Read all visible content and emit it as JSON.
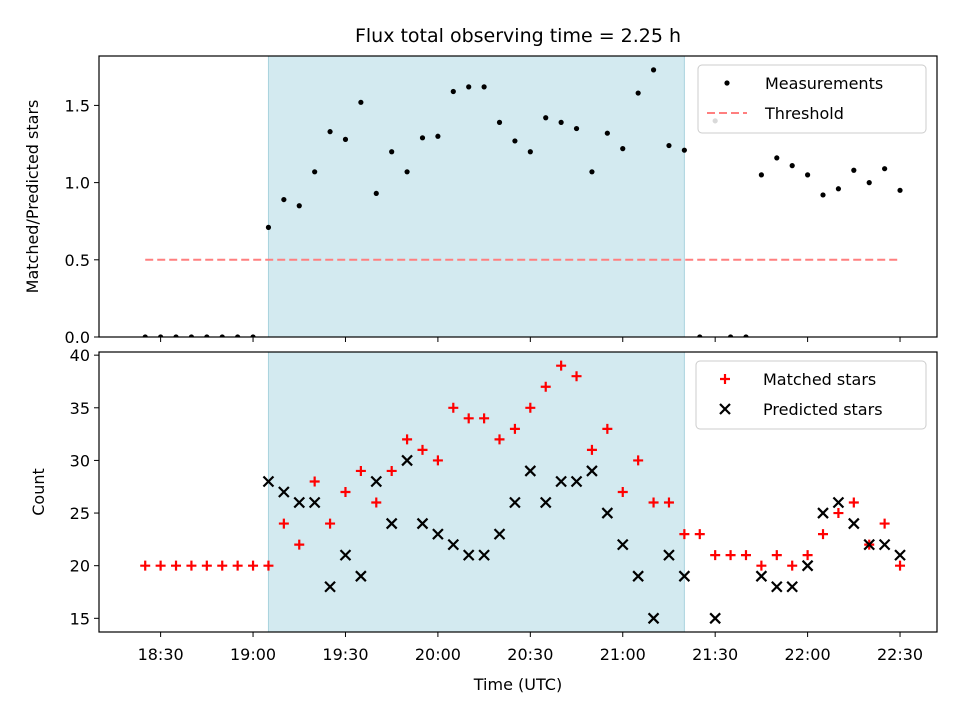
{
  "chart_data": {
    "type": "scatter",
    "title": "Flux total observing time = 2.25 h",
    "xlabel": "Time (UTC)",
    "x_ticks": [
      "18:30",
      "19:00",
      "19:30",
      "20:00",
      "20:30",
      "21:00",
      "21:30",
      "22:00",
      "22:30"
    ],
    "xlim": [
      "18:10",
      "22:42"
    ],
    "shaded_interval": [
      "19:05",
      "21:20"
    ],
    "colors": {
      "shade": "#d3eaf0",
      "measurements": "#000000",
      "threshold": "#ff7f7f",
      "matched": "#ff0000",
      "predicted": "#000000"
    },
    "panels": [
      {
        "ylabel": "Matched/Predicted stars",
        "ylim": [
          0,
          1.82
        ],
        "y_ticks": [
          "0.0",
          "0.5",
          "1.0",
          "1.5"
        ],
        "legend": {
          "position": "top-right",
          "entries": [
            "Measurements",
            "Threshold"
          ]
        },
        "series": [
          {
            "name": "Measurements",
            "marker": "dot",
            "points": [
              [
                "18:25",
                0.0
              ],
              [
                "18:30",
                0.0
              ],
              [
                "18:35",
                0.0
              ],
              [
                "18:40",
                0.0
              ],
              [
                "18:45",
                0.0
              ],
              [
                "18:50",
                0.0
              ],
              [
                "18:55",
                0.0
              ],
              [
                "19:00",
                0.0
              ],
              [
                "19:05",
                0.71
              ],
              [
                "19:10",
                0.89
              ],
              [
                "19:15",
                0.85
              ],
              [
                "19:20",
                1.07
              ],
              [
                "19:25",
                1.33
              ],
              [
                "19:30",
                1.28
              ],
              [
                "19:35",
                1.52
              ],
              [
                "19:40",
                0.93
              ],
              [
                "19:45",
                1.2
              ],
              [
                "19:50",
                1.07
              ],
              [
                "19:55",
                1.29
              ],
              [
                "20:00",
                1.3
              ],
              [
                "20:05",
                1.59
              ],
              [
                "20:10",
                1.62
              ],
              [
                "20:15",
                1.62
              ],
              [
                "20:20",
                1.39
              ],
              [
                "20:25",
                1.27
              ],
              [
                "20:30",
                1.2
              ],
              [
                "20:35",
                1.42
              ],
              [
                "20:40",
                1.39
              ],
              [
                "20:45",
                1.35
              ],
              [
                "20:50",
                1.07
              ],
              [
                "20:55",
                1.32
              ],
              [
                "21:00",
                1.22
              ],
              [
                "21:05",
                1.58
              ],
              [
                "21:10",
                1.73
              ],
              [
                "21:15",
                1.24
              ],
              [
                "21:20",
                1.21
              ],
              [
                "21:25",
                0.0
              ],
              [
                "21:30",
                1.4
              ],
              [
                "21:35",
                0.0
              ],
              [
                "21:40",
                0.0
              ],
              [
                "21:45",
                1.05
              ],
              [
                "21:50",
                1.16
              ],
              [
                "21:55",
                1.11
              ],
              [
                "22:00",
                1.05
              ],
              [
                "22:05",
                0.92
              ],
              [
                "22:10",
                0.96
              ],
              [
                "22:15",
                1.08
              ],
              [
                "22:20",
                1.0
              ],
              [
                "22:25",
                1.09
              ],
              [
                "22:30",
                0.95
              ]
            ]
          },
          {
            "name": "Threshold",
            "marker": "dashed-line",
            "points": [
              [
                "18:25",
                0.5
              ],
              [
                "22:30",
                0.5
              ]
            ]
          }
        ]
      },
      {
        "ylabel": "Count",
        "ylim": [
          13.7,
          40.3
        ],
        "y_ticks": [
          "15",
          "20",
          "25",
          "30",
          "35",
          "40"
        ],
        "legend": {
          "position": "top-right",
          "entries": [
            "Matched stars",
            "Predicted stars"
          ]
        },
        "series": [
          {
            "name": "Matched stars",
            "marker": "plus",
            "points": [
              [
                "18:25",
                20
              ],
              [
                "18:30",
                20
              ],
              [
                "18:35",
                20
              ],
              [
                "18:40",
                20
              ],
              [
                "18:45",
                20
              ],
              [
                "18:50",
                20
              ],
              [
                "18:55",
                20
              ],
              [
                "19:00",
                20
              ],
              [
                "19:05",
                20
              ],
              [
                "19:10",
                24
              ],
              [
                "19:15",
                22
              ],
              [
                "19:20",
                28
              ],
              [
                "19:25",
                24
              ],
              [
                "19:30",
                27
              ],
              [
                "19:35",
                29
              ],
              [
                "19:40",
                26
              ],
              [
                "19:45",
                29
              ],
              [
                "19:50",
                32
              ],
              [
                "19:55",
                31
              ],
              [
                "20:00",
                30
              ],
              [
                "20:05",
                35
              ],
              [
                "20:10",
                34
              ],
              [
                "20:15",
                34
              ],
              [
                "20:20",
                32
              ],
              [
                "20:25",
                33
              ],
              [
                "20:30",
                35
              ],
              [
                "20:35",
                37
              ],
              [
                "20:40",
                39
              ],
              [
                "20:45",
                38
              ],
              [
                "20:50",
                31
              ],
              [
                "20:55",
                33
              ],
              [
                "21:00",
                27
              ],
              [
                "21:05",
                30
              ],
              [
                "21:10",
                26
              ],
              [
                "21:15",
                26
              ],
              [
                "21:20",
                23
              ],
              [
                "21:25",
                23
              ],
              [
                "21:30",
                21
              ],
              [
                "21:35",
                21
              ],
              [
                "21:40",
                21
              ],
              [
                "21:45",
                20
              ],
              [
                "21:50",
                21
              ],
              [
                "21:55",
                20
              ],
              [
                "22:00",
                21
              ],
              [
                "22:05",
                23
              ],
              [
                "22:10",
                25
              ],
              [
                "22:15",
                26
              ],
              [
                "22:20",
                22
              ],
              [
                "22:25",
                24
              ],
              [
                "22:30",
                20
              ]
            ]
          },
          {
            "name": "Predicted stars",
            "marker": "x",
            "points": [
              [
                "19:05",
                28
              ],
              [
                "19:10",
                27
              ],
              [
                "19:15",
                26
              ],
              [
                "19:20",
                26
              ],
              [
                "19:25",
                18
              ],
              [
                "19:30",
                21
              ],
              [
                "19:35",
                19
              ],
              [
                "19:40",
                28
              ],
              [
                "19:45",
                24
              ],
              [
                "19:50",
                30
              ],
              [
                "19:55",
                24
              ],
              [
                "20:00",
                23
              ],
              [
                "20:05",
                22
              ],
              [
                "20:10",
                21
              ],
              [
                "20:15",
                21
              ],
              [
                "20:20",
                23
              ],
              [
                "20:25",
                26
              ],
              [
                "20:30",
                29
              ],
              [
                "20:35",
                26
              ],
              [
                "20:40",
                28
              ],
              [
                "20:45",
                28
              ],
              [
                "20:50",
                29
              ],
              [
                "20:55",
                25
              ],
              [
                "21:00",
                22
              ],
              [
                "21:05",
                19
              ],
              [
                "21:10",
                15
              ],
              [
                "21:15",
                21
              ],
              [
                "21:20",
                19
              ],
              [
                "21:30",
                15
              ],
              [
                "21:45",
                19
              ],
              [
                "21:50",
                18
              ],
              [
                "21:55",
                18
              ],
              [
                "22:00",
                20
              ],
              [
                "22:05",
                25
              ],
              [
                "22:10",
                26
              ],
              [
                "22:15",
                24
              ],
              [
                "22:20",
                22
              ],
              [
                "22:25",
                22
              ],
              [
                "22:30",
                21
              ]
            ]
          }
        ]
      }
    ]
  }
}
